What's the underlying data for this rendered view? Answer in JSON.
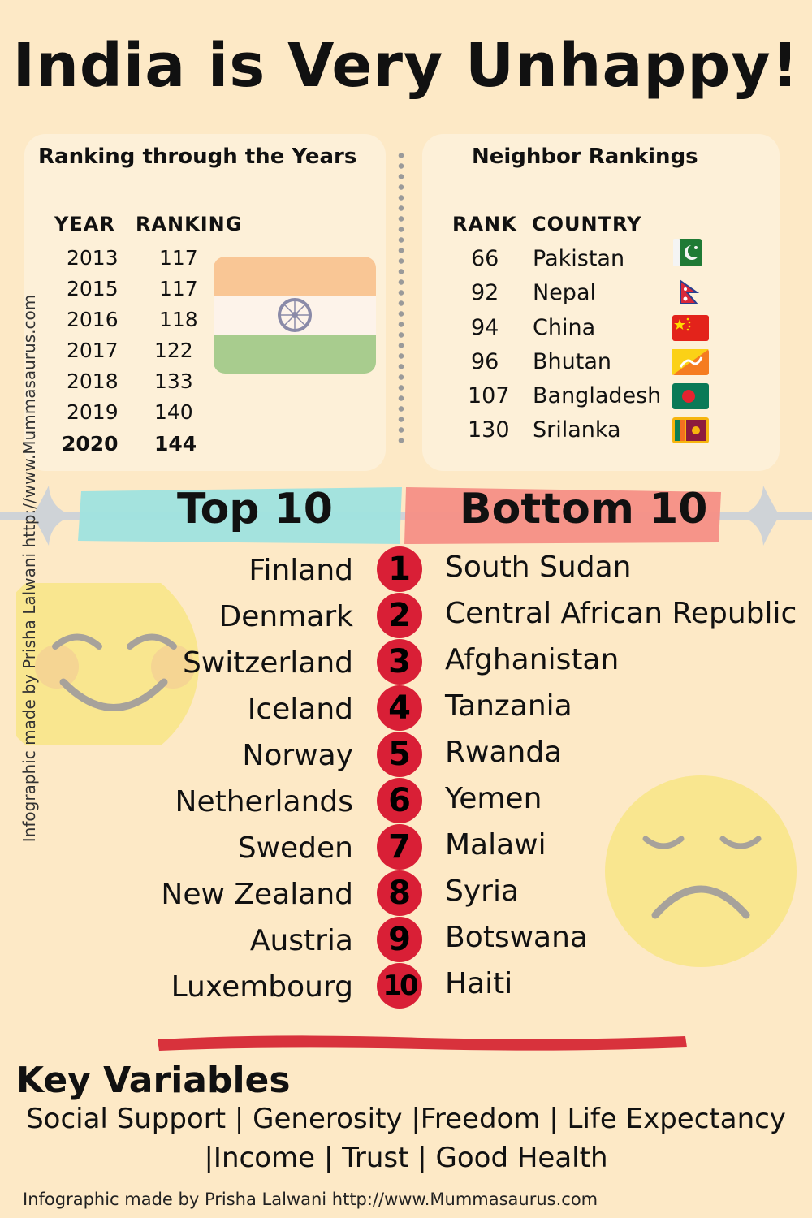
{
  "title": "India is Very Unhappy!",
  "ranking_years": {
    "title": "Ranking through the Years",
    "year_header": "YEAR",
    "ranking_header": "RANKING",
    "rows": [
      {
        "year": "2013",
        "rank": "117"
      },
      {
        "year": "2015",
        "rank": "117"
      },
      {
        "year": "2016",
        "rank": "118"
      },
      {
        "year": "2017",
        "rank": "122"
      },
      {
        "year": "2018",
        "rank": "133"
      },
      {
        "year": "2019",
        "rank": "140"
      },
      {
        "year": "2020",
        "rank": "144"
      }
    ]
  },
  "neighbors": {
    "title": "Neighbor Rankings",
    "rank_header": "RANK",
    "country_header": "COUNTRY",
    "rows": [
      {
        "rank": "66",
        "country": "Pakistan",
        "flag": "pakistan-flag-icon"
      },
      {
        "rank": "92",
        "country": "Nepal",
        "flag": "nepal-flag-icon"
      },
      {
        "rank": "94",
        "country": "China",
        "flag": "china-flag-icon"
      },
      {
        "rank": "96",
        "country": "Bhutan",
        "flag": "bhutan-flag-icon"
      },
      {
        "rank": "107",
        "country": "Bangladesh",
        "flag": "bangladesh-flag-icon"
      },
      {
        "rank": "130",
        "country": "Srilanka",
        "flag": "srilanka-flag-icon"
      }
    ]
  },
  "top_heading": "Top 10",
  "bottom_heading": "Bottom 10",
  "top10": [
    "Finland",
    "Denmark",
    "Switzerland",
    "Iceland",
    "Norway",
    "Netherlands",
    "Sweden",
    "New Zealand",
    "Austria",
    "Luxembourg"
  ],
  "bottom10": [
    "South Sudan",
    "Central African Republic",
    "Afghanistan",
    "Tanzania",
    "Rwanda",
    "Yemen",
    "Malawi",
    "Syria",
    "Botswana",
    "Haiti"
  ],
  "ranks": [
    "1",
    "2",
    "3",
    "4",
    "5",
    "6",
    "7",
    "8",
    "9",
    "10"
  ],
  "key_variables": {
    "title": "Key Variables",
    "line1": "Social Support | Generosity |Freedom | Life Expectancy",
    "line2": "|Income | Trust | Good Health"
  },
  "credit": "Infographic made by Prisha Lalwani http://www.Mummasaurus.com",
  "colors": {
    "background": "#fde9c6",
    "card": "#fdf0d8",
    "rank_circle": "#d91f36",
    "top_band": "#9fe3df",
    "bottom_band": "#f68f86",
    "underline": "#d8323c",
    "emoji": "#f8e585"
  }
}
